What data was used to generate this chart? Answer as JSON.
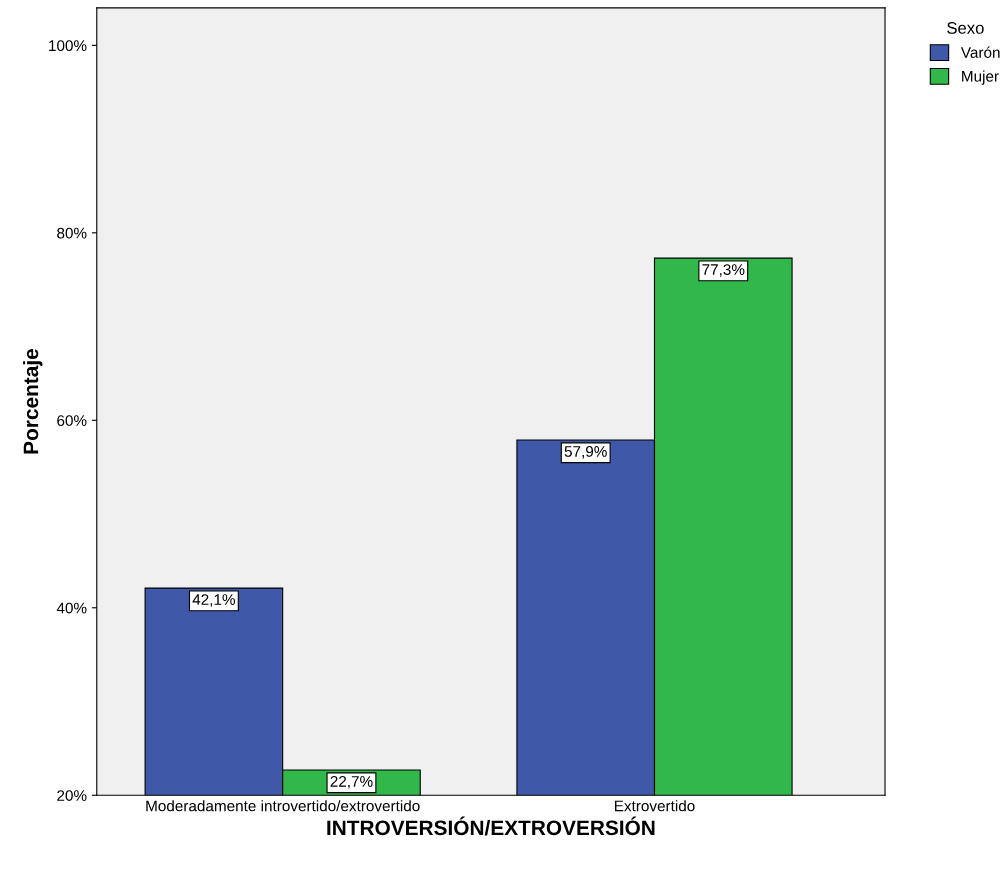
{
  "chart_data": {
    "type": "bar",
    "xlabel": "INTROVERSIÓN/EXTROVERSIÓN",
    "ylabel": "Porcentaje",
    "legend_title": "Sexo",
    "categories": [
      "Moderadamente introvertido/extrovertido",
      "Extrovertido"
    ],
    "series": [
      {
        "name": "Varón",
        "color": "#3f58a8",
        "values": [
          42.1,
          57.9
        ],
        "value_labels": [
          "42,1%",
          "57,9%"
        ]
      },
      {
        "name": "Mujer",
        "color": "#30b84a",
        "values": [
          22.7,
          77.3
        ],
        "value_labels": [
          "22,7%",
          "77,3%"
        ]
      }
    ],
    "ylim": [
      20,
      104
    ],
    "yticks": [
      {
        "value": 20,
        "label": "20%"
      },
      {
        "value": 40,
        "label": "40%"
      },
      {
        "value": 60,
        "label": "60%"
      },
      {
        "value": 80,
        "label": "80%"
      },
      {
        "value": 100,
        "label": "100%"
      }
    ],
    "grid": false,
    "legend": "top right"
  }
}
